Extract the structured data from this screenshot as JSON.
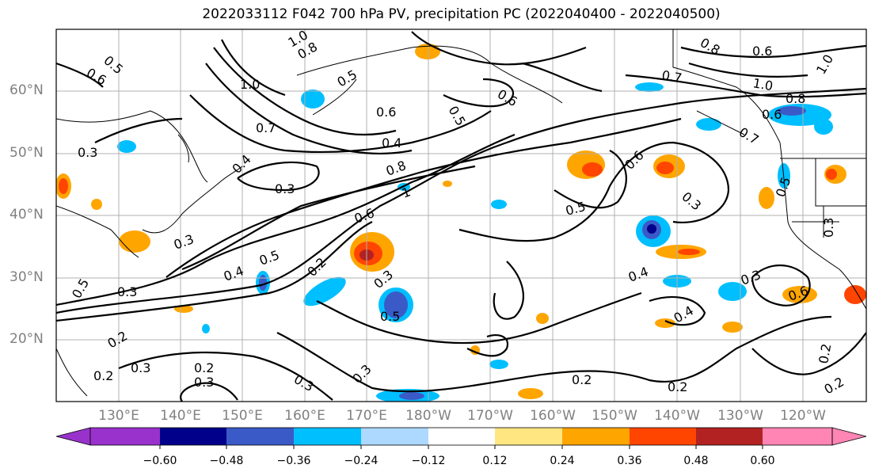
{
  "title": "2022033112 F042 700 hPa PV, precipitation PC (2022040400 - 2022040500)",
  "lat_labels": [
    "60°N",
    "50°N",
    "40°N",
    "30°N",
    "20°N"
  ],
  "lon_labels": [
    "130°E",
    "140°E",
    "150°E",
    "160°E",
    "170°E",
    "180°W",
    "170°W",
    "160°W",
    "150°W",
    "140°W",
    "130°W",
    "120°W"
  ],
  "colorbar": {
    "colors": [
      "#9932cc",
      "#00008b",
      "#3a5bc7",
      "#00bfff",
      "#add8ff",
      "#ffffff",
      "#ffe680",
      "#ffa500",
      "#ff4500",
      "#b22222",
      "#ff85b5"
    ],
    "tick_labels": [
      "−0.60",
      "−0.48",
      "−0.36",
      "−0.24",
      "−0.12",
      "0.12",
      "0.24",
      "0.36",
      "0.48",
      "0.60"
    ]
  },
  "contour_labels": [
    "0.5",
    "0.6",
    "1.0",
    "0.8",
    "0.5",
    "1.0",
    "0.7",
    "0.6",
    "0.4",
    "0.3",
    "0.4",
    "0.3",
    "0.8",
    "1",
    "0.6",
    "0.3",
    "0.4",
    "0.5",
    "0.2",
    "0.5",
    "0.3",
    "0.2",
    "0.3",
    "0.2",
    "0.3",
    "0.3",
    "0.2",
    "0.3",
    "0.3",
    "0.5",
    "0.6",
    "0.3",
    "0.5",
    "0.4",
    "0.3",
    "0.6",
    "0.5",
    "0.3",
    "0.2",
    "0.2",
    "0.2",
    "0.2",
    "0.7",
    "0.6",
    "0.5",
    "0.8",
    "0.6",
    "1.0",
    "1.0",
    "0.6",
    "0.7",
    "0.8",
    "0.4"
  ],
  "colors": {
    "coast": "#000000",
    "contour": "#000000",
    "grid": "#b0b0b0",
    "axis_label": "#808080"
  }
}
